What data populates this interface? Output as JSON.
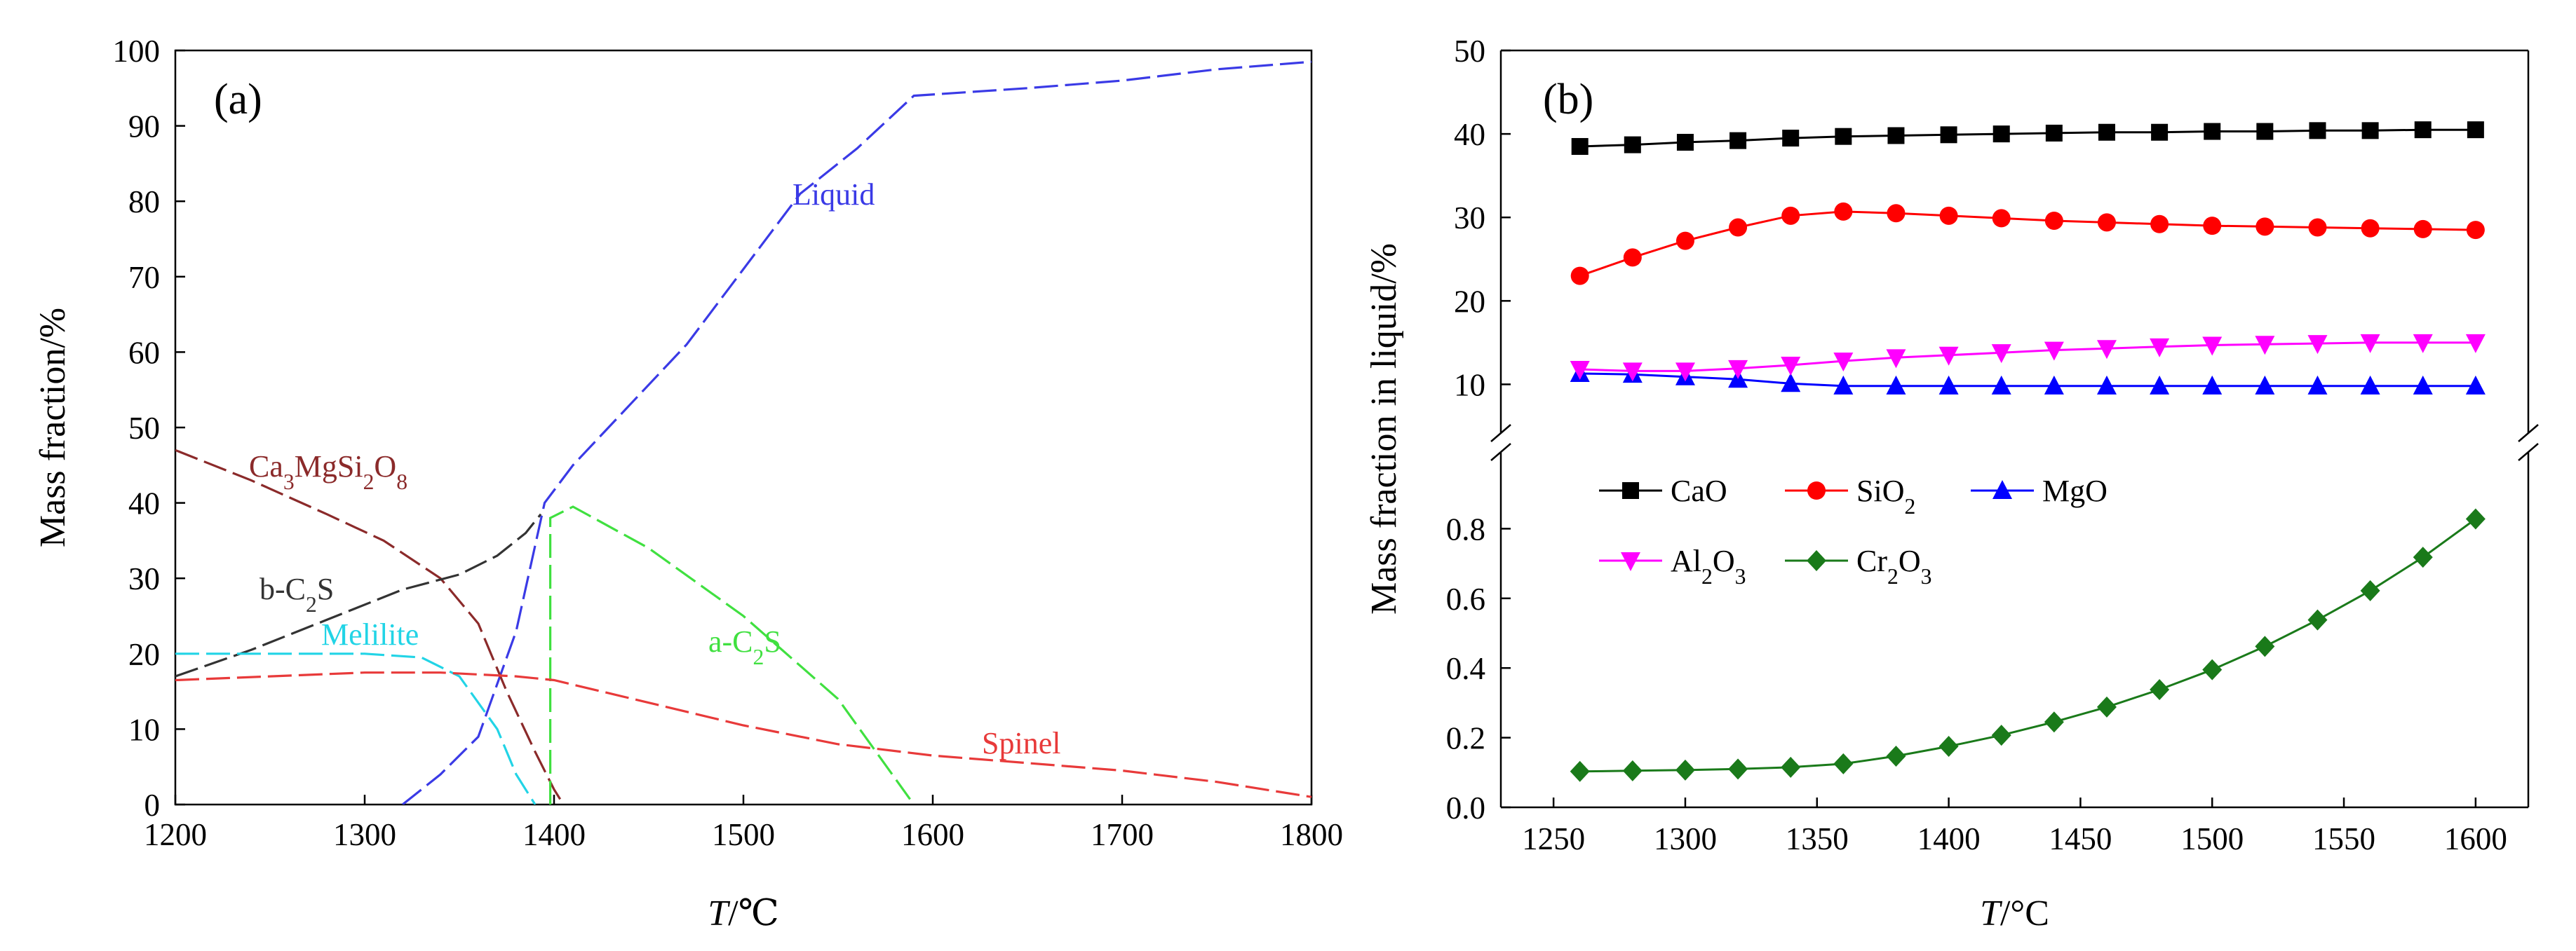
{
  "chart_data": [
    {
      "id": "a",
      "type": "line",
      "panel_label": "(a)",
      "xlabel_var": "T",
      "xlabel_unit": "/℃",
      "ylabel": "Mass fraction/%",
      "xlim": [
        1200,
        1800
      ],
      "ylim": [
        0,
        100
      ],
      "x_ticks": [
        1200,
        1300,
        1400,
        1500,
        1600,
        1700,
        1800
      ],
      "y_ticks": [
        0,
        10,
        20,
        30,
        40,
        50,
        60,
        70,
        80,
        90,
        100
      ],
      "series": [
        {
          "name": "Liquid",
          "label_parts": [
            {
              "t": "Liquid"
            }
          ],
          "color": "#3a3ae6",
          "x": [
            1320,
            1340,
            1360,
            1380,
            1395,
            1410,
            1440,
            1470,
            1500,
            1530,
            1560,
            1590,
            1650,
            1700,
            1750,
            1800
          ],
          "y": [
            0,
            4,
            9,
            23,
            40,
            45,
            53,
            61,
            71,
            81,
            87,
            94,
            95,
            96,
            97.5,
            98.5
          ]
        },
        {
          "name": "Ca3MgSi2O8",
          "label_parts": [
            {
              "t": "Ca"
            },
            {
              "t": "3",
              "sub": true
            },
            {
              "t": "MgSi"
            },
            {
              "t": "2",
              "sub": true
            },
            {
              "t": "O"
            },
            {
              "t": "8",
              "sub": true
            }
          ],
          "color": "#8b2a2a",
          "x": [
            1200,
            1240,
            1280,
            1310,
            1340,
            1360,
            1375,
            1390,
            1400,
            1405
          ],
          "y": [
            47,
            43,
            38.5,
            35,
            30,
            24,
            15,
            7,
            2,
            0
          ]
        },
        {
          "name": "b-C2S",
          "label_parts": [
            {
              "t": "b-C"
            },
            {
              "t": "2",
              "sub": true
            },
            {
              "t": "S"
            }
          ],
          "color": "#333333",
          "x": [
            1200,
            1240,
            1280,
            1320,
            1350,
            1370,
            1385,
            1393
          ],
          "y": [
            17,
            20.5,
            24.5,
            28.5,
            30.5,
            33,
            36,
            38.5
          ]
        },
        {
          "name": "Melilite",
          "label_parts": [
            {
              "t": "Melilite"
            }
          ],
          "color": "#22d4e6",
          "x": [
            1200,
            1250,
            1300,
            1330,
            1350,
            1370,
            1380,
            1390
          ],
          "y": [
            20,
            20,
            20,
            19.5,
            17,
            10,
            4,
            0
          ]
        },
        {
          "name": "a-C2S",
          "label_parts": [
            {
              "t": "a-C"
            },
            {
              "t": "2",
              "sub": true
            },
            {
              "t": "S"
            }
          ],
          "color": "#40e040",
          "x": [
            1398,
            1398,
            1410,
            1450,
            1500,
            1550,
            1590
          ],
          "y": [
            0,
            38,
            39.5,
            34,
            25,
            14,
            0
          ]
        },
        {
          "name": "Spinel",
          "label_parts": [
            {
              "t": "Spinel"
            }
          ],
          "color": "#e83a3a",
          "x": [
            1200,
            1250,
            1300,
            1340,
            1380,
            1400,
            1450,
            1500,
            1550,
            1600,
            1650,
            1700,
            1750,
            1800
          ],
          "y": [
            16.5,
            17,
            17.5,
            17.5,
            17,
            16.5,
            13.5,
            10.5,
            8,
            6.5,
            5.5,
            4.5,
            3,
            1
          ]
        }
      ]
    },
    {
      "id": "b",
      "type": "line",
      "panel_label": "(b)",
      "xlabel_var": "T",
      "xlabel_unit": "/°C",
      "ylabel": "Mass fraction in liquid/%",
      "xlim": [
        1230,
        1620
      ],
      "x_ticks": [
        1250,
        1300,
        1350,
        1400,
        1450,
        1500,
        1550,
        1600
      ],
      "axis_break": true,
      "y_upper": {
        "lim": [
          5,
          50
        ],
        "ticks": [
          10,
          20,
          30,
          40,
          50
        ]
      },
      "y_lower": {
        "lim": [
          0,
          1
        ],
        "ticks": [
          0.0,
          0.2,
          0.4,
          0.6,
          0.8
        ],
        "tick_labels": [
          "0.0",
          "0.2",
          "0.4",
          "0.6",
          "0.8"
        ]
      },
      "x": [
        1260,
        1280,
        1300,
        1320,
        1340,
        1360,
        1380,
        1400,
        1420,
        1440,
        1460,
        1480,
        1500,
        1520,
        1540,
        1560,
        1580,
        1600
      ],
      "series": [
        {
          "name": "CaO",
          "label_parts": [
            {
              "t": "CaO"
            }
          ],
          "axis": "upper",
          "color": "#000000",
          "marker": "square",
          "values": [
            38.5,
            38.7,
            39.0,
            39.2,
            39.5,
            39.7,
            39.8,
            39.9,
            40.0,
            40.1,
            40.2,
            40.2,
            40.3,
            40.3,
            40.4,
            40.4,
            40.5,
            40.5
          ]
        },
        {
          "name": "SiO2",
          "label_parts": [
            {
              "t": "SiO"
            },
            {
              "t": "2",
              "sub": true
            }
          ],
          "axis": "upper",
          "color": "#ff0000",
          "marker": "circle",
          "values": [
            23.0,
            25.2,
            27.2,
            28.8,
            30.2,
            30.7,
            30.5,
            30.2,
            29.9,
            29.6,
            29.4,
            29.2,
            29.0,
            28.9,
            28.8,
            28.7,
            28.6,
            28.5
          ]
        },
        {
          "name": "MgO",
          "label_parts": [
            {
              "t": "MgO"
            }
          ],
          "axis": "upper",
          "color": "#0000ff",
          "marker": "triangle-up",
          "values": [
            11.3,
            11.2,
            10.9,
            10.6,
            10.1,
            9.8,
            9.8,
            9.8,
            9.8,
            9.8,
            9.8,
            9.8,
            9.8,
            9.8,
            9.8,
            9.8,
            9.8,
            9.8
          ]
        },
        {
          "name": "Al2O3",
          "label_parts": [
            {
              "t": "Al"
            },
            {
              "t": "2",
              "sub": true
            },
            {
              "t": "O"
            },
            {
              "t": "3",
              "sub": true
            }
          ],
          "axis": "upper",
          "color": "#ff00ff",
          "marker": "triangle-down",
          "values": [
            11.8,
            11.6,
            11.6,
            11.9,
            12.3,
            12.8,
            13.2,
            13.5,
            13.8,
            14.1,
            14.3,
            14.5,
            14.7,
            14.8,
            14.9,
            15.0,
            15.0,
            15.0
          ]
        },
        {
          "name": "Cr2O3",
          "label_parts": [
            {
              "t": "Cr"
            },
            {
              "t": "2",
              "sub": true
            },
            {
              "t": "O"
            },
            {
              "t": "3",
              "sub": true
            }
          ],
          "axis": "lower",
          "color": "#1a7a1a",
          "marker": "diamond",
          "values": [
            0.103,
            0.105,
            0.107,
            0.11,
            0.115,
            0.125,
            0.147,
            0.175,
            0.207,
            0.245,
            0.288,
            0.338,
            0.395,
            0.462,
            0.538,
            0.622,
            0.718,
            0.828
          ]
        }
      ]
    }
  ]
}
